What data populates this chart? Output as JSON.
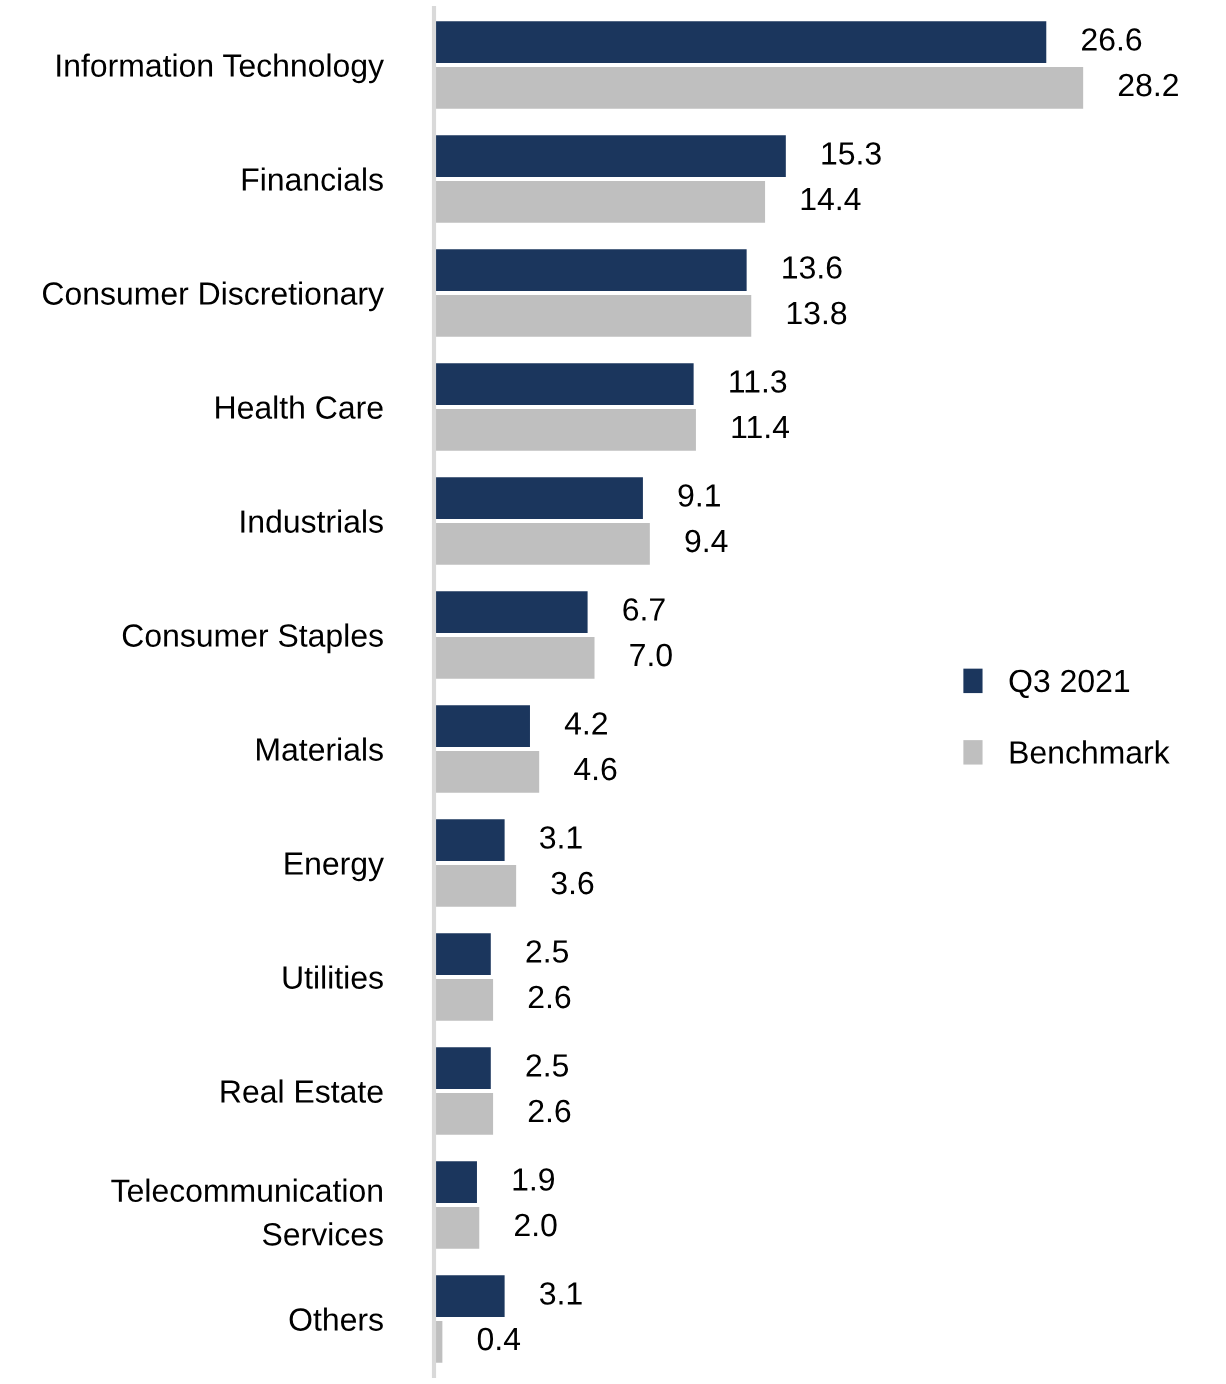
{
  "chart_data": {
    "type": "bar",
    "orientation": "horizontal",
    "legend": "right",
    "grid": false,
    "categories": [
      "Information Technology",
      "Financials",
      "Consumer Discretionary",
      "Health Care",
      "Industrials",
      "Consumer Staples",
      "Materials",
      "Energy",
      "Utilities",
      "Real Estate",
      "Telecommunication\nServices",
      "Others"
    ],
    "series": [
      {
        "name": "Q3 2021",
        "color": "#1b365d",
        "values": [
          26.6,
          15.3,
          13.6,
          11.3,
          9.1,
          6.7,
          4.2,
          3.1,
          2.5,
          2.5,
          1.9,
          3.1
        ],
        "value_labels": [
          "26.6",
          "15.3",
          "13.6",
          "11.3",
          "9.1",
          "6.7",
          "4.2",
          "3.1",
          "2.5",
          "2.5",
          "1.9",
          "3.1"
        ]
      },
      {
        "name": "Benchmark",
        "color": "#bfbfbf",
        "values": [
          28.2,
          14.4,
          13.8,
          11.4,
          9.4,
          7.0,
          4.6,
          3.6,
          2.6,
          2.6,
          2.0,
          0.4
        ],
        "value_labels": [
          "28.2",
          "14.4",
          "13.8",
          "11.4",
          "9.4",
          "7.0",
          "4.6",
          "3.6",
          "2.6",
          "2.6",
          "2.0",
          "0.4"
        ]
      }
    ]
  }
}
